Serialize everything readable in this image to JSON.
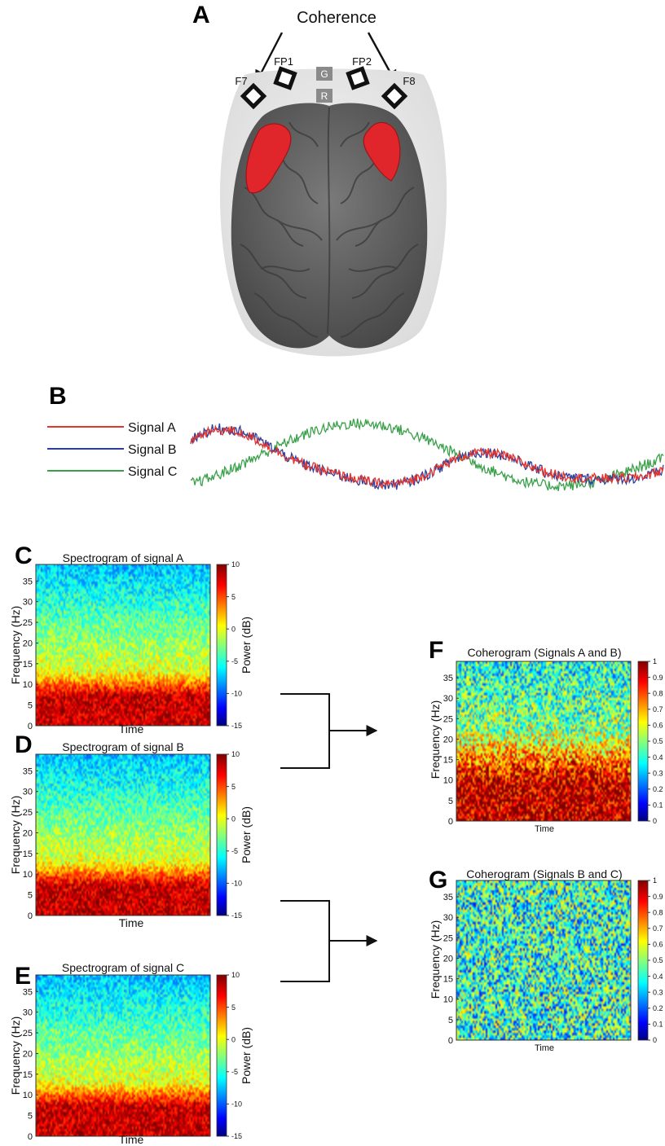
{
  "figure": {
    "panels": {
      "A": "A",
      "B": "B",
      "C": "C",
      "D": "D",
      "E": "E",
      "F": "F",
      "G": "G"
    }
  },
  "panelA": {
    "title": "Coherence",
    "electrodes": [
      "F7",
      "FP1",
      "G",
      "R",
      "FP2",
      "F8"
    ],
    "colors": {
      "brain": "#6b6b6b",
      "highlight": "#e0252b",
      "head": "#e8e8e8"
    }
  },
  "panelB": {
    "legend": [
      {
        "label": "Signal A",
        "color": "#e8332a"
      },
      {
        "label": "Signal B",
        "color": "#2e3f9a"
      },
      {
        "label": "Signal C",
        "color": "#3aa04a"
      }
    ]
  },
  "chart_data": [
    {
      "type": "heatmap",
      "title": "Spectrogram of signal A",
      "xlabel": "Time",
      "ylabel": "Frequency (Hz)",
      "ylim": [
        0,
        39
      ],
      "yticks": [
        0,
        5,
        10,
        15,
        20,
        25,
        30,
        35
      ],
      "colorbar_label": "Power (dB)",
      "colorbar_range": [
        -15,
        10
      ],
      "colorbar_ticks": [
        10,
        5,
        0,
        -5,
        -10,
        -15
      ]
    },
    {
      "type": "heatmap",
      "title": "Spectrogram of signal B",
      "xlabel": "Time",
      "ylabel": "Frequency (Hz)",
      "ylim": [
        0,
        39
      ],
      "yticks": [
        0,
        5,
        10,
        15,
        20,
        25,
        30,
        35
      ],
      "colorbar_label": "Power (dB)",
      "colorbar_range": [
        -15,
        10
      ],
      "colorbar_ticks": [
        10,
        5,
        0,
        -5,
        -10,
        -15
      ]
    },
    {
      "type": "heatmap",
      "title": "Spectrogram of signal C",
      "xlabel": "Time",
      "ylabel": "Frequency (Hz)",
      "ylim": [
        0,
        39
      ],
      "yticks": [
        0,
        5,
        10,
        15,
        20,
        25,
        30,
        35
      ],
      "colorbar_label": "Power (dB)",
      "colorbar_range": [
        -15,
        10
      ],
      "colorbar_ticks": [
        10,
        5,
        0,
        -5,
        -10,
        -15
      ]
    },
    {
      "type": "heatmap",
      "title": "Coherogram (Signals A and B)",
      "xlabel": "Time",
      "ylabel": "Frequency (Hz)",
      "ylim": [
        0,
        39
      ],
      "yticks": [
        0,
        5,
        10,
        15,
        20,
        25,
        30,
        35
      ],
      "colorbar_range": [
        0,
        1
      ],
      "colorbar_ticks": [
        1,
        0.9,
        0.8,
        0.7,
        0.6,
        0.5,
        0.4,
        0.3,
        0.2,
        0.1,
        0
      ]
    },
    {
      "type": "heatmap",
      "title": "Coherogram (Signals B and C)",
      "xlabel": "Time",
      "ylabel": "Frequency (Hz)",
      "ylim": [
        0,
        39
      ],
      "yticks": [
        0,
        5,
        10,
        15,
        20,
        25,
        30,
        35
      ],
      "colorbar_range": [
        0,
        1
      ],
      "colorbar_ticks": [
        1,
        0.9,
        0.8,
        0.7,
        0.6,
        0.5,
        0.4,
        0.3,
        0.2,
        0.1,
        0
      ]
    }
  ]
}
